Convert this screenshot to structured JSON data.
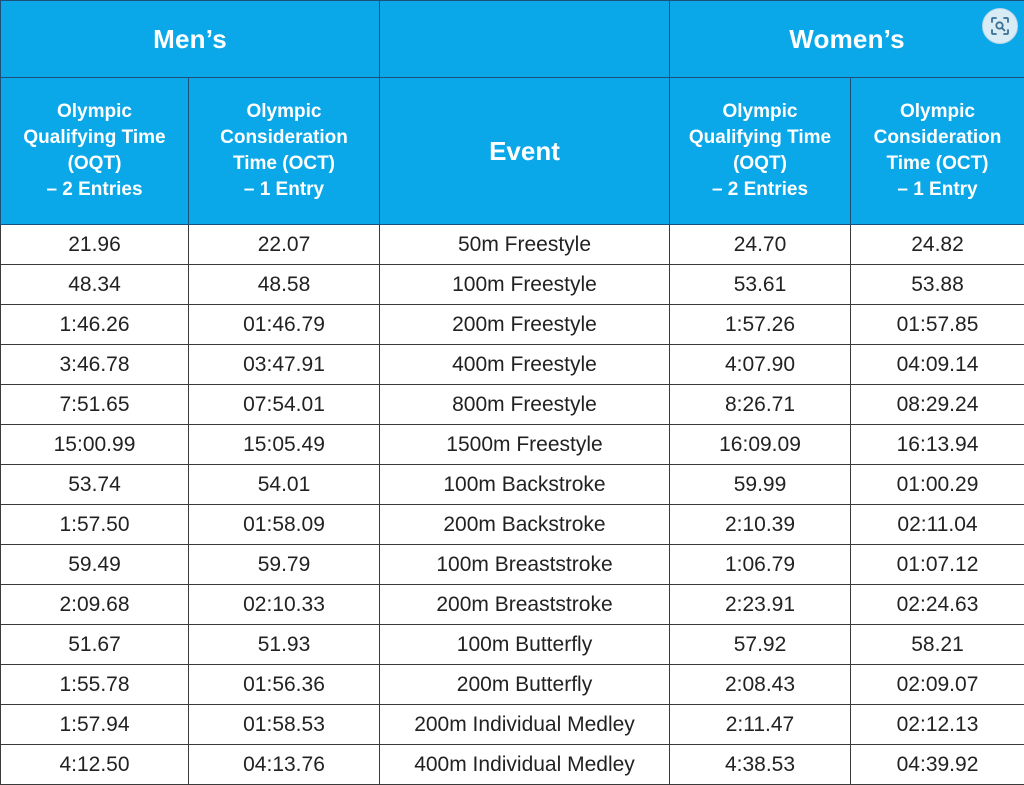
{
  "colors": {
    "header_bg": "#0aa8e8",
    "header_text": "#ffffff",
    "border": "#3a3a3a"
  },
  "header": {
    "mens": "Men’s",
    "womens": "Women’s",
    "event": "Event",
    "oqt": "Olympic\nQualifying Time\n(OQT)\n– 2 Entries",
    "oct": "Olympic\nConsideration\nTime (OCT)\n– 1 Entry"
  },
  "lens_icon": "image-search-icon",
  "rows": [
    {
      "men_oqt": "21.96",
      "men_oct": "22.07",
      "event": "50m Freestyle",
      "women_oqt": "24.70",
      "women_oct": "24.82"
    },
    {
      "men_oqt": "48.34",
      "men_oct": "48.58",
      "event": "100m Freestyle",
      "women_oqt": "53.61",
      "women_oct": "53.88"
    },
    {
      "men_oqt": "1:46.26",
      "men_oct": "01:46.79",
      "event": "200m Freestyle",
      "women_oqt": "1:57.26",
      "women_oct": "01:57.85"
    },
    {
      "men_oqt": "3:46.78",
      "men_oct": "03:47.91",
      "event": "400m Freestyle",
      "women_oqt": "4:07.90",
      "women_oct": "04:09.14"
    },
    {
      "men_oqt": "7:51.65",
      "men_oct": "07:54.01",
      "event": "800m Freestyle",
      "women_oqt": "8:26.71",
      "women_oct": "08:29.24"
    },
    {
      "men_oqt": "15:00.99",
      "men_oct": "15:05.49",
      "event": "1500m Freestyle",
      "women_oqt": "16:09.09",
      "women_oct": "16:13.94"
    },
    {
      "men_oqt": "53.74",
      "men_oct": "54.01",
      "event": "100m Backstroke",
      "women_oqt": "59.99",
      "women_oct": "01:00.29"
    },
    {
      "men_oqt": "1:57.50",
      "men_oct": "01:58.09",
      "event": "200m Backstroke",
      "women_oqt": "2:10.39",
      "women_oct": "02:11.04"
    },
    {
      "men_oqt": "59.49",
      "men_oct": "59.79",
      "event": "100m Breaststroke",
      "women_oqt": "1:06.79",
      "women_oct": "01:07.12"
    },
    {
      "men_oqt": "2:09.68",
      "men_oct": "02:10.33",
      "event": "200m Breaststroke",
      "women_oqt": "2:23.91",
      "women_oct": "02:24.63"
    },
    {
      "men_oqt": "51.67",
      "men_oct": "51.93",
      "event": "100m Butterfly",
      "women_oqt": "57.92",
      "women_oct": "58.21"
    },
    {
      "men_oqt": "1:55.78",
      "men_oct": "01:56.36",
      "event": "200m Butterfly",
      "women_oqt": "2:08.43",
      "women_oct": "02:09.07"
    },
    {
      "men_oqt": "1:57.94",
      "men_oct": "01:58.53",
      "event": "200m Individual Medley",
      "women_oqt": "2:11.47",
      "women_oct": "02:12.13"
    },
    {
      "men_oqt": "4:12.50",
      "men_oct": "04:13.76",
      "event": "400m Individual Medley",
      "women_oqt": "4:38.53",
      "women_oct": "04:39.92"
    }
  ]
}
